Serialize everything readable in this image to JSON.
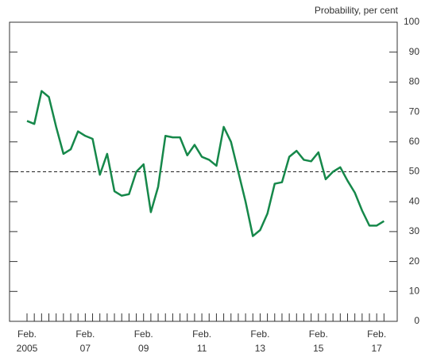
{
  "chart_data": {
    "type": "line",
    "y_axis_label": "Probability, per cent",
    "categories": [
      [
        "Feb.",
        "2005"
      ],
      null,
      null,
      null,
      null,
      null,
      null,
      null,
      [
        "Feb.",
        "07"
      ],
      null,
      null,
      null,
      null,
      null,
      null,
      null,
      [
        "Feb.",
        "09"
      ],
      null,
      null,
      null,
      null,
      null,
      null,
      null,
      [
        "Feb.",
        "11"
      ],
      null,
      null,
      null,
      null,
      null,
      null,
      null,
      [
        "Feb.",
        "13"
      ],
      null,
      null,
      null,
      null,
      null,
      null,
      null,
      [
        "Feb.",
        "15"
      ],
      null,
      null,
      null,
      null,
      null,
      null,
      null,
      [
        "Feb.",
        "17"
      ],
      null
    ],
    "series": [
      {
        "color": "#16884a",
        "values": [
          67,
          66,
          77,
          75,
          65,
          56,
          57.5,
          63.5,
          62,
          61,
          49,
          56,
          43.5,
          42,
          42.5,
          50,
          52.5,
          36.5,
          45,
          62,
          61.5,
          61.5,
          55.5,
          59,
          55,
          54,
          52,
          65,
          60,
          50,
          40,
          28.5,
          30.5,
          36,
          46,
          46.5,
          55,
          57,
          54,
          53.5,
          56.5,
          47.5,
          50,
          51.5,
          47,
          43,
          37,
          32,
          32,
          33.5
        ]
      }
    ],
    "reference_line": 50,
    "ylim": [
      0,
      100
    ],
    "yticks": [
      0,
      10,
      20,
      30,
      40,
      50,
      60,
      70,
      80,
      90,
      100
    ]
  }
}
